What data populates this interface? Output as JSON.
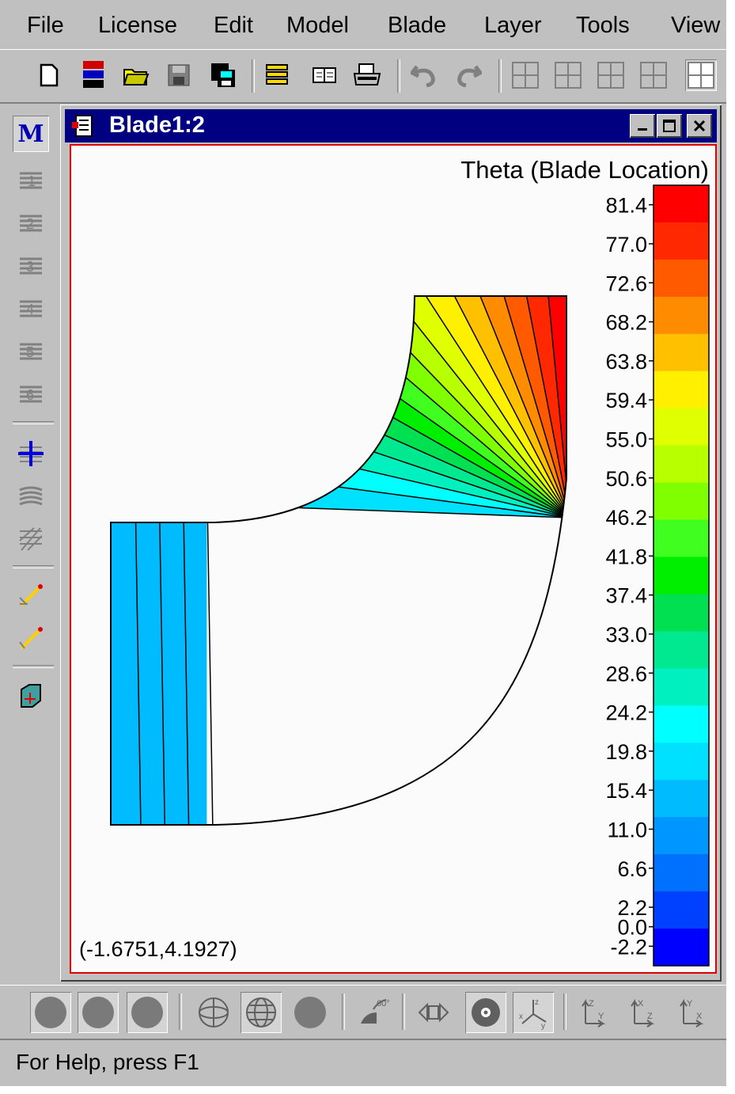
{
  "menu": [
    "File",
    "License",
    "Edit",
    "Model",
    "Blade",
    "Layer",
    "Tools",
    "View"
  ],
  "window": {
    "title": "Blade1:2"
  },
  "plot": {
    "legend_title": "Theta (Blade Location)",
    "legend_labels": [
      "81.4",
      "77.0",
      "72.6",
      "68.2",
      "63.8",
      "59.4",
      "55.0",
      "50.6",
      "46.2",
      "41.8",
      "37.4",
      "33.0",
      "28.6",
      "24.2",
      "19.8",
      "15.4",
      "11.0",
      "6.6",
      "2.2",
      "0.0",
      "-2.2"
    ],
    "legend_colors": [
      "#ff0000",
      "#ff2800",
      "#ff5a00",
      "#ff8c00",
      "#ffc000",
      "#fff000",
      "#e0ff00",
      "#b8ff00",
      "#80ff00",
      "#40ff20",
      "#00ee00",
      "#00e050",
      "#00e890",
      "#00f0c0",
      "#00ffff",
      "#00e0ff",
      "#00bcff",
      "#0096ff",
      "#0070ff",
      "#0040ff",
      "#0000ff"
    ],
    "cursor_coordinates": "(-1.6751,4.1927)"
  },
  "status": {
    "help_text": "For Help, press F1"
  },
  "icons": {
    "left_toolbar": [
      "m-icon",
      "layer-1-icon",
      "layer-2-icon",
      "layer-3-icon",
      "layer-4-icon",
      "layer-5-icon",
      "layer-6-icon",
      "crosshair-icon",
      "surface-icon",
      "mesh-icon",
      "pencil-icon",
      "pencil-2-icon",
      "grid-cube-icon"
    ],
    "bottom_toolbar": [
      "sphere-1-icon",
      "sphere-2-icon",
      "sphere-3-icon",
      "wire-sphere-icon",
      "globe-icon",
      "sphere-4-icon",
      "shading-icon",
      "fit-icon",
      "center-icon",
      "axes-icon",
      "view-zy-icon",
      "view-xz-icon",
      "view-yx-icon"
    ]
  }
}
